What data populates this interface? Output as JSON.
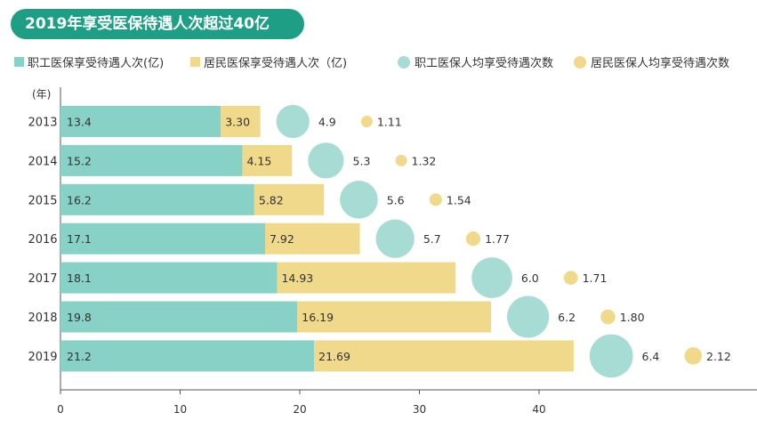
{
  "title": "2019年享受医保待遇人次超过40亿",
  "colors": {
    "title_bg": "#1f9e86",
    "employee_bar": "#88d1c6",
    "resident_bar": "#f0d98a",
    "employee_bubble": "#a6dcd4",
    "resident_bubble": "#f0d98a"
  },
  "legend": [
    {
      "label": "职工医保享受待遇人次(亿)",
      "shape": "square",
      "color": "#88d1c6"
    },
    {
      "label": "居民医保享受待遇人次（亿)",
      "shape": "square",
      "color": "#f0d98a"
    },
    {
      "label": "职工医保人均享受待遇次数",
      "shape": "circle",
      "color": "#a6dcd4"
    },
    {
      "label": "居民医保人均享受待遇次数",
      "shape": "circle",
      "color": "#f0d98a"
    }
  ],
  "chart_data": {
    "type": "bar",
    "orientation": "horizontal",
    "stacked": true,
    "y_unit_label": "(年)",
    "categories": [
      "2013",
      "2014",
      "2015",
      "2016",
      "2017",
      "2018",
      "2019"
    ],
    "series": [
      {
        "name": "职工医保享受待遇人次(亿)",
        "values": [
          13.4,
          15.2,
          16.2,
          17.1,
          18.1,
          19.8,
          21.2
        ],
        "labels": [
          "13.4",
          "15.2",
          "16.2",
          "17.1",
          "18.1",
          "19.8",
          "21.2"
        ]
      },
      {
        "name": "居民医保享受待遇人次（亿)",
        "values": [
          3.3,
          4.15,
          5.82,
          7.92,
          14.93,
          16.19,
          21.69
        ],
        "labels": [
          "3.30",
          "4.15",
          "5.82",
          "7.92",
          "14.93",
          "16.19",
          "21.69"
        ]
      }
    ],
    "bubbles": [
      {
        "name": "职工医保人均享受待遇次数",
        "values": [
          4.9,
          5.3,
          5.6,
          5.7,
          6.0,
          6.2,
          6.4
        ],
        "labels": [
          "4.9",
          "5.3",
          "5.6",
          "5.7",
          "6.0",
          "6.2",
          "6.4"
        ]
      },
      {
        "name": "居民医保人均享受待遇次数",
        "values": [
          1.11,
          1.32,
          1.54,
          1.77,
          1.71,
          1.8,
          2.12
        ],
        "labels": [
          "1.11",
          "1.32",
          "1.54",
          "1.77",
          "1.71",
          "1.80",
          "2.12"
        ]
      }
    ],
    "xlim": [
      0,
      50
    ],
    "xticks": [
      "0",
      "10",
      "20",
      "30",
      "40"
    ],
    "grid": false
  }
}
